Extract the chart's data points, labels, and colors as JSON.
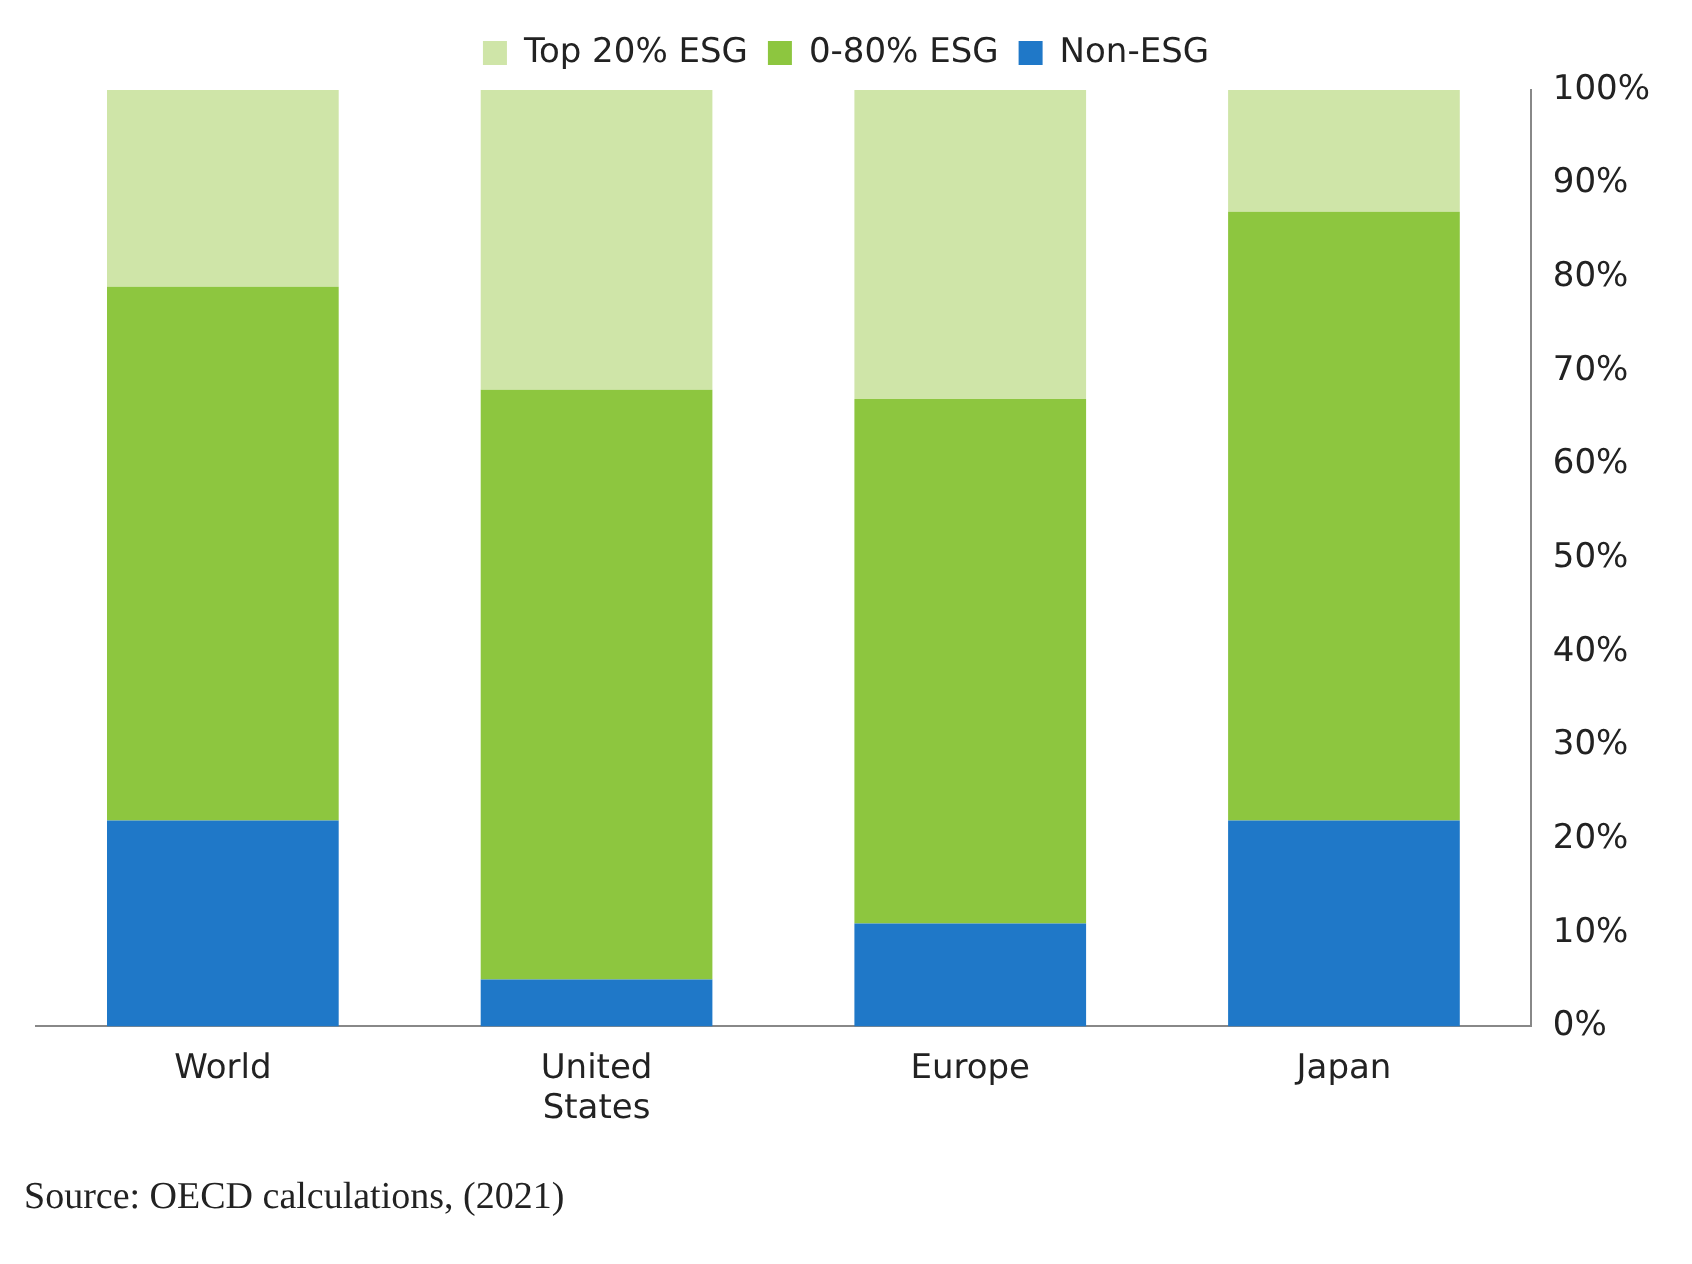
{
  "chart_data": {
    "type": "bar",
    "stacked": true,
    "categories": [
      "World",
      "United States",
      "Europe",
      "Japan"
    ],
    "series": [
      {
        "name": "Non-ESG",
        "color": "#1f78c8",
        "values": [
          22,
          5,
          11,
          22
        ]
      },
      {
        "name": "0-80% ESG",
        "color": "#8dc63f",
        "values": [
          57,
          63,
          56,
          65
        ]
      },
      {
        "name": "Top 20% ESG",
        "color": "#cfe5a8",
        "values": [
          21,
          32,
          33,
          13
        ]
      }
    ],
    "ylim": [
      0,
      100
    ],
    "yticks": [
      {
        "value": 0,
        "label": "0%"
      },
      {
        "value": 10,
        "label": "10%"
      },
      {
        "value": 20,
        "label": "20%"
      },
      {
        "value": 30,
        "label": "30%"
      },
      {
        "value": 40,
        "label": "40%"
      },
      {
        "value": 50,
        "label": "50%"
      },
      {
        "value": 60,
        "label": "60%"
      },
      {
        "value": 70,
        "label": "70%"
      },
      {
        "value": 80,
        "label": "80%"
      },
      {
        "value": 90,
        "label": "90%"
      },
      {
        "value": 100,
        "label": "100%"
      }
    ],
    "grid": false,
    "legend": "top",
    "annotations": [
      "Source: OECD calculations, (2021)"
    ]
  }
}
